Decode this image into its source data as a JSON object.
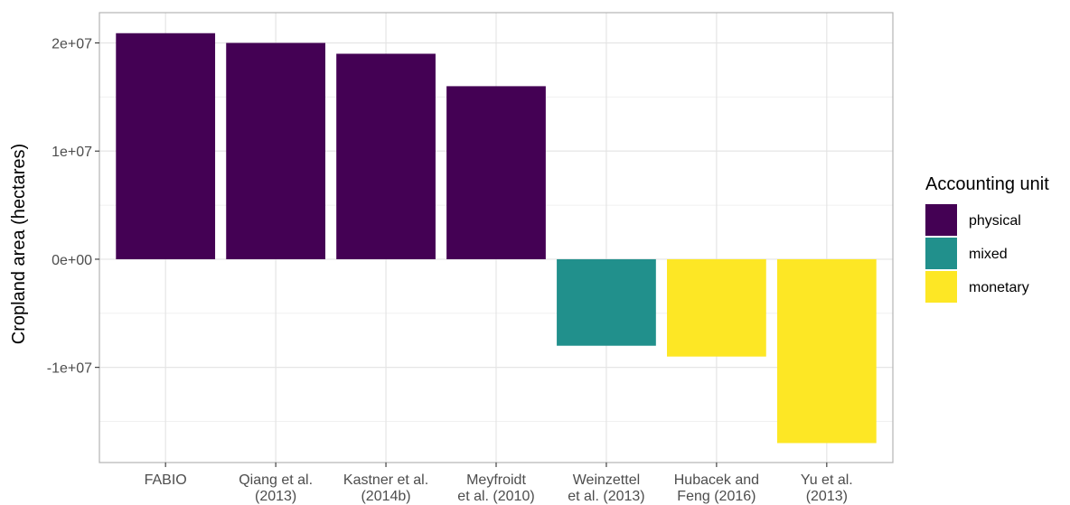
{
  "chart_data": {
    "type": "bar",
    "ylabel": "Cropland area (hectares)",
    "xlabel": "",
    "ylim": [
      -18800000,
      22800000
    ],
    "yticks": [
      {
        "value": 20000000,
        "label": "2e+07"
      },
      {
        "value": 10000000,
        "label": "1e+07"
      },
      {
        "value": 0,
        "label": "0e+00"
      },
      {
        "value": -10000000,
        "label": "-1e+07"
      }
    ],
    "categories": [
      [
        "FABIO"
      ],
      [
        "Qiang et al.",
        "(2013)"
      ],
      [
        "Kastner et al.",
        "(2014b)"
      ],
      [
        "Meyfroidt",
        "et al. (2010)"
      ],
      [
        "Weinzettel",
        "et al. (2013)"
      ],
      [
        "Hubacek and",
        "Feng (2016)"
      ],
      [
        "Yu et al.",
        "(2013)"
      ]
    ],
    "values": [
      20900000,
      20000000,
      19000000,
      16000000,
      -8000000,
      -9000000,
      -17000000
    ],
    "groups": [
      "physical",
      "physical",
      "physical",
      "physical",
      "mixed",
      "monetary",
      "monetary"
    ],
    "grid": true,
    "legend": {
      "title": "Accounting unit",
      "placement": "right",
      "items": [
        {
          "label": "physical",
          "color": "#440154"
        },
        {
          "label": "mixed",
          "color": "#21908C"
        },
        {
          "label": "monetary",
          "color": "#FDE725"
        }
      ]
    }
  }
}
